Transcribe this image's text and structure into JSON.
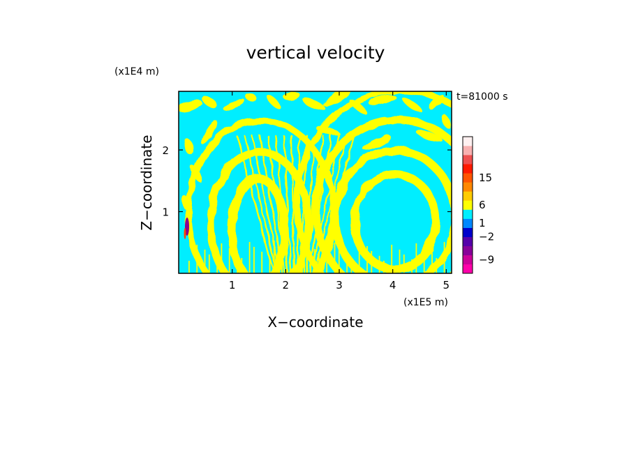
{
  "chart_data": {
    "type": "heatmap",
    "title": "vertical velocity",
    "time_label": "t=81000 s",
    "xlabel": "X−coordinate",
    "ylabel": "Z−coordinate",
    "x_scale_label": "(x1E5 m)",
    "y_scale_label": "(x1E4 m)",
    "xlim": [
      0,
      5.1
    ],
    "ylim": [
      0,
      2.95
    ],
    "xticks": [
      {
        "value": 1,
        "label": "1"
      },
      {
        "value": 2,
        "label": "2"
      },
      {
        "value": 3,
        "label": "3"
      },
      {
        "value": 4,
        "label": "4"
      },
      {
        "value": 5,
        "label": "5"
      }
    ],
    "yticks": [
      {
        "value": 1,
        "label": "1"
      },
      {
        "value": 2,
        "label": "2"
      }
    ],
    "fill_colors": {
      "background": "#00eeff",
      "positive": "#ffff00",
      "negative_core": "#8a008a",
      "positive_core": "#ff4400"
    },
    "colorbar": {
      "levels": [
        {
          "color": "#ff00aa"
        },
        {
          "color": "#cc0099"
        },
        {
          "color": "#880099"
        },
        {
          "color": "#5500aa"
        },
        {
          "color": "#0000cc"
        },
        {
          "color": "#0088ff"
        },
        {
          "color": "#00eeff"
        },
        {
          "color": "#ffff00"
        },
        {
          "color": "#ffcc00"
        },
        {
          "color": "#ff8800"
        },
        {
          "color": "#ff5500"
        },
        {
          "color": "#ff1a00"
        },
        {
          "color": "#ee5050"
        },
        {
          "color": "#f8b0b0"
        },
        {
          "color": "#fff0f0"
        }
      ],
      "labels": [
        {
          "value": -9,
          "label": "−9"
        },
        {
          "value": -2,
          "label": "−2"
        },
        {
          "value": 1,
          "label": "1"
        },
        {
          "value": 6,
          "label": "6"
        },
        {
          "value": 15,
          "label": "15"
        }
      ]
    }
  }
}
